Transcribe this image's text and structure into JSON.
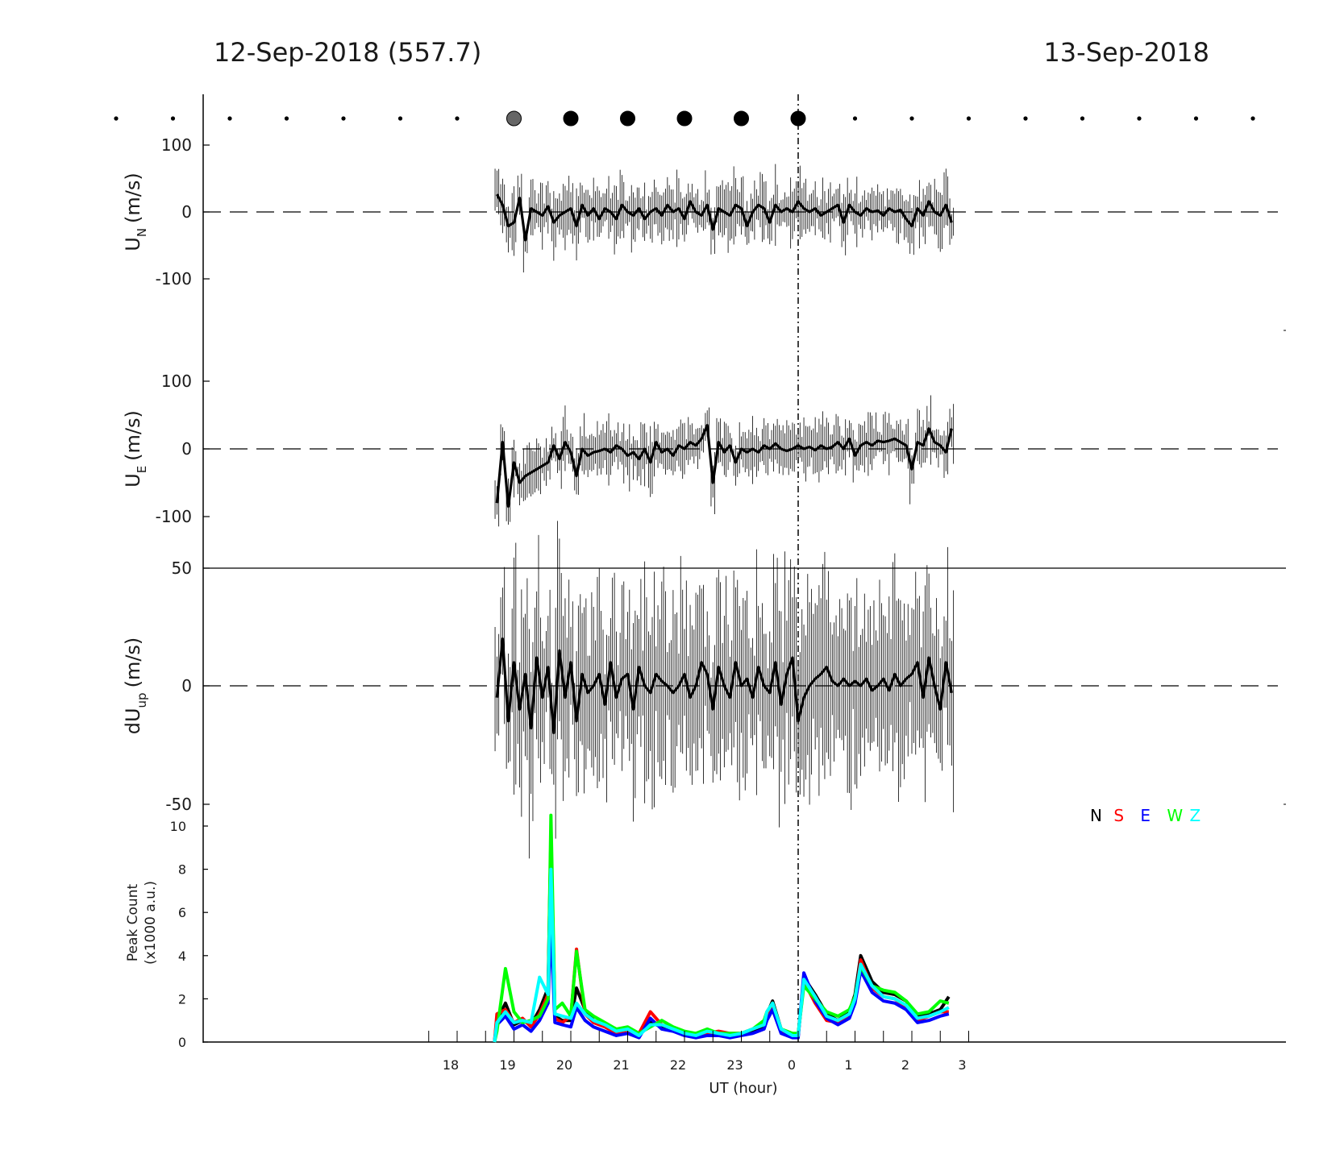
{
  "header": {
    "left_title": "12-Sep-2018 (557.7)",
    "right_title": "13-Sep-2018"
  },
  "chart_data": [
    {
      "type": "scatter",
      "panel": "sky-condition-markers",
      "x_hours": [
        -6,
        -5,
        -4,
        -3,
        -2,
        -1,
        0,
        1,
        2,
        3,
        4,
        5,
        6,
        7,
        8,
        9,
        10,
        11,
        12,
        13,
        14
      ],
      "marker_size": [
        "small",
        "small",
        "small",
        "small",
        "small",
        "small",
        "small",
        "large",
        "large",
        "large",
        "large",
        "large",
        "large",
        "small",
        "small",
        "small",
        "small",
        "small",
        "small",
        "small",
        "small"
      ],
      "marker_color": [
        "#000000",
        "#000000",
        "#000000",
        "#000000",
        "#000000",
        "#000000",
        "#000000",
        "#666666",
        "#000000",
        "#000000",
        "#000000",
        "#000000",
        "#000000",
        "#000000",
        "#000000",
        "#000000",
        "#000000",
        "#000000",
        "#000000",
        "#000000",
        "#000000"
      ]
    },
    {
      "type": "line",
      "panel": "UN",
      "ylabel": "U",
      "ylabel_sub": "N",
      "ylabel_unit": "(m/s)",
      "ylim": [
        -100,
        100
      ],
      "yticks": [
        "100",
        "0",
        "-100"
      ],
      "x_hours": [
        18.7,
        18.8,
        18.9,
        19.0,
        19.1,
        19.2,
        19.3,
        19.4,
        19.5,
        19.6,
        19.7,
        19.8,
        19.9,
        20.0,
        20.1,
        20.2,
        20.3,
        20.4,
        20.5,
        20.6,
        20.7,
        20.8,
        20.9,
        21.0,
        21.1,
        21.2,
        21.3,
        21.4,
        21.5,
        21.6,
        21.7,
        21.8,
        21.9,
        22.0,
        22.1,
        22.2,
        22.3,
        22.4,
        22.5,
        22.6,
        22.7,
        22.8,
        22.9,
        23.0,
        23.1,
        23.2,
        23.3,
        23.4,
        23.5,
        23.6,
        23.7,
        23.8,
        23.9,
        24.0,
        24.1,
        24.2,
        24.3,
        24.4,
        24.5,
        24.6,
        24.7,
        24.8,
        24.9,
        25.0,
        25.1,
        25.2,
        25.3,
        25.4,
        25.5,
        25.6,
        25.7,
        25.8,
        25.9,
        26.0,
        26.1,
        26.2,
        26.3,
        26.4,
        26.5,
        26.6,
        26.7
      ],
      "values": [
        25,
        10,
        -20,
        -15,
        20,
        -40,
        5,
        0,
        -5,
        8,
        -15,
        -5,
        0,
        5,
        -20,
        10,
        -5,
        5,
        -10,
        5,
        0,
        -10,
        10,
        0,
        -5,
        5,
        -10,
        0,
        5,
        -5,
        10,
        0,
        5,
        -10,
        15,
        0,
        -5,
        10,
        -25,
        5,
        0,
        -5,
        10,
        5,
        -20,
        0,
        10,
        5,
        -15,
        10,
        0,
        5,
        0,
        15,
        5,
        0,
        5,
        -5,
        0,
        5,
        10,
        -15,
        10,
        0,
        -5,
        5,
        0,
        2,
        -5,
        5,
        0,
        3,
        -10,
        -20,
        5,
        -5,
        15,
        0,
        -5,
        10,
        -15
      ]
    },
    {
      "type": "line",
      "panel": "UE",
      "ylabel": "U",
      "ylabel_sub": "E",
      "ylabel_unit": "(m/s)",
      "ylim": [
        -100,
        100
      ],
      "yticks": [
        "100",
        "0",
        "-100"
      ],
      "x_hours": [
        18.7,
        18.8,
        18.9,
        19.0,
        19.1,
        19.2,
        19.3,
        19.4,
        19.5,
        19.6,
        19.7,
        19.8,
        19.9,
        20.0,
        20.1,
        20.2,
        20.3,
        20.4,
        20.5,
        20.6,
        20.7,
        20.8,
        20.9,
        21.0,
        21.1,
        21.2,
        21.3,
        21.4,
        21.5,
        21.6,
        21.7,
        21.8,
        21.9,
        22.0,
        22.1,
        22.2,
        22.3,
        22.4,
        22.5,
        22.6,
        22.7,
        22.8,
        22.9,
        23.0,
        23.1,
        23.2,
        23.3,
        23.4,
        23.5,
        23.6,
        23.7,
        23.8,
        23.9,
        24.0,
        24.1,
        24.2,
        24.3,
        24.4,
        24.5,
        24.6,
        24.7,
        24.8,
        24.9,
        25.0,
        25.1,
        25.2,
        25.3,
        25.4,
        25.5,
        25.6,
        25.7,
        25.8,
        25.9,
        26.0,
        26.1,
        26.2,
        26.3,
        26.4,
        26.5,
        26.6,
        26.7
      ],
      "values": [
        -80,
        10,
        -85,
        -20,
        -50,
        -40,
        -35,
        -30,
        -25,
        -20,
        5,
        -15,
        10,
        -5,
        -40,
        0,
        -10,
        -5,
        -3,
        0,
        -5,
        5,
        0,
        -10,
        -5,
        -15,
        0,
        -20,
        10,
        -5,
        0,
        -10,
        5,
        0,
        10,
        5,
        15,
        35,
        -50,
        10,
        -5,
        5,
        -20,
        0,
        -5,
        0,
        -5,
        5,
        0,
        8,
        0,
        -3,
        0,
        5,
        0,
        3,
        -2,
        5,
        0,
        3,
        10,
        0,
        15,
        -10,
        5,
        10,
        5,
        12,
        10,
        12,
        15,
        10,
        5,
        -30,
        10,
        5,
        30,
        10,
        5,
        -5,
        30
      ]
    },
    {
      "type": "line",
      "panel": "dUup",
      "ylabel": "dU",
      "ylabel_sub": "up",
      "ylabel_unit": "(m/s)",
      "ylim": [
        -50,
        50
      ],
      "yticks": [
        "50",
        "0",
        "-50"
      ],
      "x_hours": [
        18.7,
        18.8,
        18.9,
        19.0,
        19.1,
        19.2,
        19.3,
        19.4,
        19.5,
        19.6,
        19.7,
        19.8,
        19.9,
        20.0,
        20.1,
        20.2,
        20.3,
        20.4,
        20.5,
        20.6,
        20.7,
        20.8,
        20.9,
        21.0,
        21.1,
        21.2,
        21.3,
        21.4,
        21.5,
        21.6,
        21.7,
        21.8,
        21.9,
        22.0,
        22.1,
        22.2,
        22.3,
        22.4,
        22.5,
        22.6,
        22.7,
        22.8,
        22.9,
        23.0,
        23.1,
        23.2,
        23.3,
        23.4,
        23.5,
        23.6,
        23.7,
        23.8,
        23.9,
        24.0,
        24.1,
        24.2,
        24.3,
        24.4,
        24.5,
        24.6,
        24.7,
        24.8,
        24.9,
        25.0,
        25.1,
        25.2,
        25.3,
        25.4,
        25.5,
        25.6,
        25.7,
        25.8,
        25.9,
        26.0,
        26.1,
        26.2,
        26.3,
        26.4,
        26.5,
        26.6,
        26.7
      ],
      "values": [
        -5,
        20,
        -15,
        10,
        -10,
        5,
        -18,
        12,
        -5,
        8,
        -20,
        15,
        -5,
        10,
        -15,
        5,
        -3,
        0,
        5,
        -8,
        10,
        -5,
        3,
        5,
        -10,
        8,
        0,
        -3,
        5,
        2,
        0,
        -3,
        0,
        5,
        -5,
        0,
        10,
        5,
        -10,
        8,
        0,
        -5,
        10,
        0,
        3,
        -5,
        8,
        0,
        -3,
        10,
        -8,
        5,
        12,
        -15,
        -5,
        0,
        3,
        5,
        8,
        2,
        0,
        3,
        0,
        2,
        0,
        3,
        -2,
        0,
        3,
        -2,
        5,
        0,
        3,
        5,
        10,
        -5,
        12,
        0,
        -10,
        10,
        -3
      ]
    },
    {
      "type": "line",
      "panel": "peak-count",
      "ylabel": "Peak Count",
      "ylabel2": "(x1000 a.u.)",
      "ylim": [
        0,
        10.5
      ],
      "yticks": [
        "10",
        "8",
        "6",
        "4",
        "2",
        "0"
      ],
      "xlabel": "UT (hour)",
      "xticks": [
        "18",
        "19",
        "20",
        "21",
        "22",
        "23",
        "0",
        "1",
        "2",
        "3"
      ],
      "legend": {
        "placement": "top-right",
        "entries": [
          "N",
          "S",
          "E",
          "W",
          "Z"
        ]
      },
      "x_hours": [
        18.7,
        18.85,
        19.0,
        19.15,
        19.3,
        19.45,
        19.6,
        19.65,
        19.72,
        19.85,
        20.0,
        20.1,
        20.25,
        20.4,
        20.6,
        20.8,
        21.0,
        21.2,
        21.4,
        21.6,
        21.8,
        22.0,
        22.2,
        22.4,
        22.6,
        22.8,
        23.0,
        23.2,
        23.4,
        23.45,
        23.55,
        23.7,
        23.9,
        24.0,
        24.1,
        24.3,
        24.5,
        24.7,
        24.9,
        25.0,
        25.1,
        25.3,
        25.5,
        25.7,
        25.9,
        26.1,
        26.3,
        26.5,
        26.65
      ],
      "series": [
        {
          "name": "N",
          "color": "#000000",
          "values": [
            1.0,
            1.8,
            0.8,
            1.0,
            0.8,
            1.5,
            2.5,
            9.5,
            1.2,
            1.0,
            1.0,
            2.5,
            1.5,
            1.0,
            0.8,
            0.5,
            0.6,
            0.3,
            0.9,
            0.7,
            0.6,
            0.4,
            0.3,
            0.5,
            0.4,
            0.3,
            0.4,
            0.5,
            0.7,
            1.3,
            1.9,
            0.6,
            0.3,
            0.3,
            3.0,
            2.2,
            1.3,
            1.0,
            1.4,
            2.2,
            4.0,
            2.8,
            2.3,
            2.2,
            1.9,
            1.2,
            1.3,
            1.5,
            2.1
          ]
        },
        {
          "name": "S",
          "color": "#ff0000",
          "values": [
            1.3,
            1.5,
            0.9,
            1.1,
            0.7,
            1.3,
            2.2,
            6.5,
            1.1,
            0.9,
            1.2,
            4.3,
            1.3,
            0.9,
            0.7,
            0.4,
            0.5,
            0.4,
            1.4,
            0.8,
            0.6,
            0.3,
            0.3,
            0.4,
            0.5,
            0.4,
            0.4,
            0.6,
            0.8,
            1.2,
            1.6,
            0.5,
            0.4,
            0.3,
            2.8,
            1.8,
            1.0,
            0.9,
            1.2,
            1.9,
            3.8,
            2.5,
            2.1,
            2.0,
            1.6,
            1.0,
            1.2,
            1.4,
            1.4
          ]
        },
        {
          "name": "E",
          "color": "#0000ff",
          "values": [
            0.8,
            1.2,
            0.6,
            0.8,
            0.5,
            1.0,
            1.8,
            5.5,
            0.9,
            0.8,
            0.7,
            1.6,
            1.0,
            0.7,
            0.5,
            0.3,
            0.4,
            0.2,
            1.1,
            0.6,
            0.5,
            0.3,
            0.2,
            0.3,
            0.3,
            0.2,
            0.3,
            0.4,
            0.6,
            1.0,
            1.5,
            0.4,
            0.2,
            0.2,
            3.2,
            1.9,
            1.1,
            0.8,
            1.1,
            1.8,
            3.3,
            2.3,
            1.9,
            1.8,
            1.5,
            0.9,
            1.0,
            1.2,
            1.3
          ]
        },
        {
          "name": "W",
          "color": "#00ff00",
          "values": [
            0.5,
            3.4,
            1.4,
            0.9,
            1.0,
            1.2,
            2.0,
            10.5,
            1.5,
            1.8,
            1.2,
            4.2,
            1.5,
            1.2,
            0.9,
            0.6,
            0.7,
            0.4,
            0.7,
            1.0,
            0.7,
            0.5,
            0.4,
            0.6,
            0.4,
            0.4,
            0.4,
            0.6,
            1.0,
            1.4,
            1.8,
            0.6,
            0.4,
            0.4,
            2.6,
            2.0,
            1.4,
            1.2,
            1.5,
            2.1,
            3.5,
            2.6,
            2.4,
            2.3,
            1.9,
            1.3,
            1.4,
            1.9,
            1.8
          ]
        },
        {
          "name": "Z",
          "color": "#00ffff",
          "values": [
            0.9,
            1.4,
            0.9,
            1.0,
            0.9,
            3.0,
            2.2,
            8.0,
            1.3,
            1.2,
            1.1,
            1.8,
            1.3,
            1.0,
            0.8,
            0.5,
            0.6,
            0.3,
            0.8,
            0.8,
            0.6,
            0.4,
            0.3,
            0.5,
            0.4,
            0.3,
            0.4,
            0.6,
            0.8,
            1.4,
            1.8,
            0.6,
            0.3,
            0.3,
            2.9,
            2.1,
            1.2,
            1.0,
            1.3,
            2.0,
            3.6,
            2.6,
            2.1,
            2.0,
            1.7,
            1.1,
            1.2,
            1.4,
            1.6
          ]
        }
      ]
    }
  ]
}
